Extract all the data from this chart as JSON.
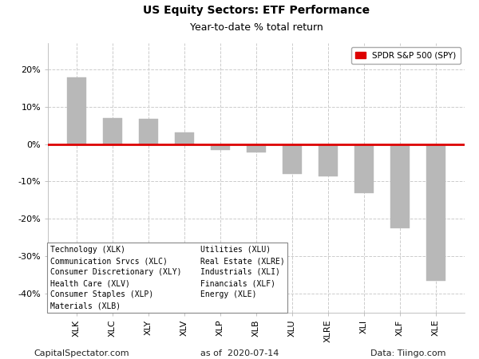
{
  "title": "US Equity Sectors: ETF Performance",
  "subtitle": "Year-to-date % total return",
  "categories": [
    "XLK",
    "XLC",
    "XLY",
    "XLV",
    "XLP",
    "XLB",
    "XLU",
    "XLRE",
    "XLI",
    "XLF",
    "XLE"
  ],
  "values": [
    17.8,
    7.0,
    6.8,
    3.2,
    -1.5,
    -2.2,
    -8.0,
    -8.7,
    -13.0,
    -22.5,
    -36.5
  ],
  "bar_color": "#b8b8b8",
  "bar_edge_color": "#b8b8b8",
  "spy_line_color": "#dd0000",
  "spy_value": 0,
  "ylim": [
    -45,
    27
  ],
  "yticks": [
    -40,
    -30,
    -20,
    -10,
    0,
    10,
    20
  ],
  "ytick_labels": [
    "-40%",
    "-30%",
    "-20%",
    "-10%",
    "0%",
    "10%",
    "20%"
  ],
  "legend_label": "SPDR S&P 500 (SPY)",
  "footnote_left": "CapitalSpectator.com",
  "footnote_center": "as of  2020-07-14",
  "footnote_right": "Data: Tiingo.com",
  "legend_col1": [
    "Technology (XLK)",
    "Communication Srvcs (XLC)",
    "Consumer Discretionary (XLY)",
    "Health Care (XLV)",
    "Consumer Staples (XLP)",
    "Materials (XLB)"
  ],
  "legend_col2": [
    "Utilities (XLU)",
    "Real Estate (XLRE)",
    "Industrials (XLI)",
    "Financials (XLF)",
    "Energy (XLE)",
    ""
  ],
  "background_color": "#ffffff",
  "plot_bg_color": "#ffffff",
  "grid_color": "#cccccc",
  "title_fontsize": 10,
  "subtitle_fontsize": 9,
  "tick_fontsize": 8,
  "footnote_fontsize": 8,
  "legend_fontsize": 7.5,
  "inner_legend_fontsize": 7
}
